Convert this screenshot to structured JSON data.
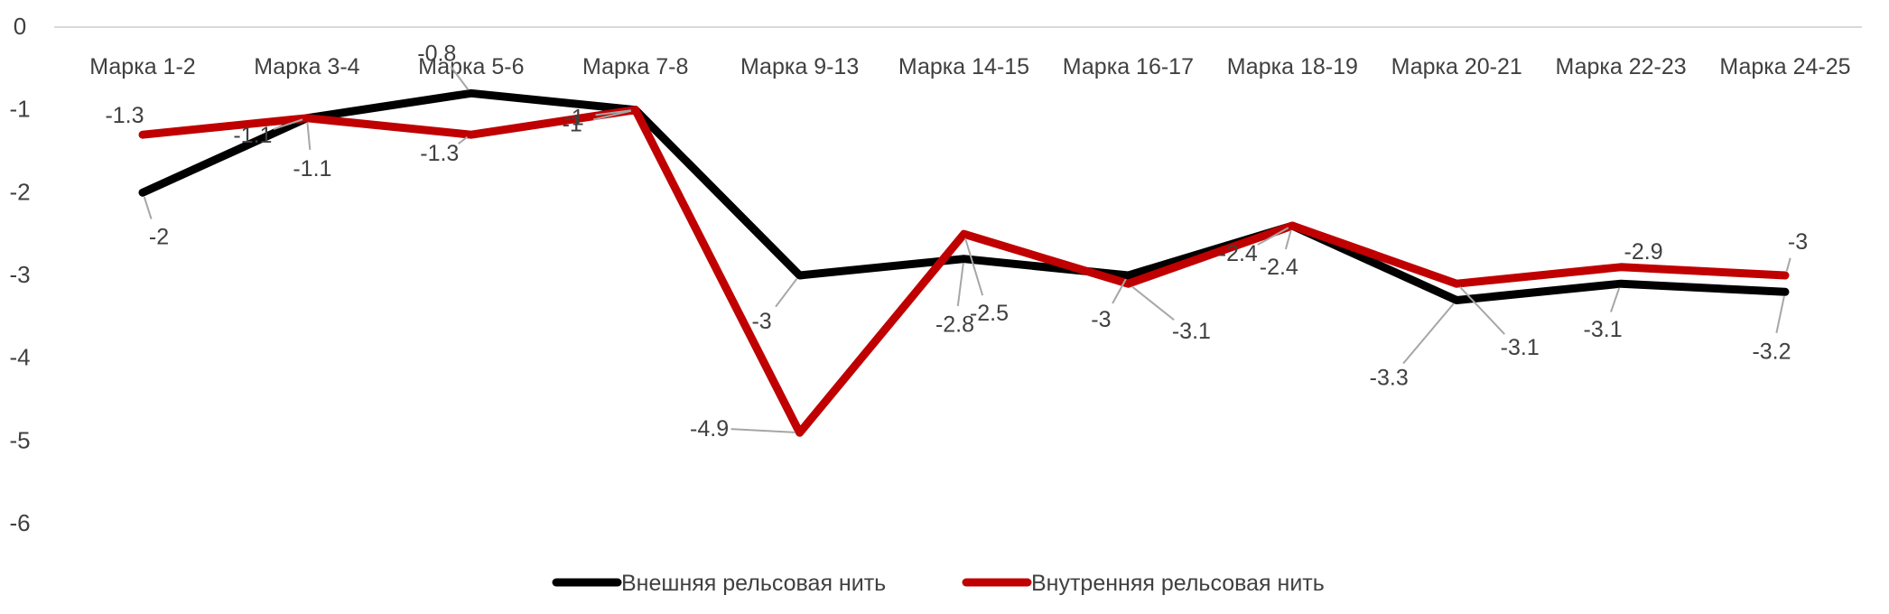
{
  "chart_data": {
    "type": "line",
    "title": "",
    "xlabel": "",
    "ylabel": "",
    "ylim": [
      -6,
      0
    ],
    "yticks": [
      0,
      -1,
      -2,
      -3,
      -4,
      -5,
      -6
    ],
    "categories": [
      "Марка 1-2",
      "Марка 3-4",
      "Марка 5-6",
      "Марка 7-8",
      "Марка 9-13",
      "Марка 14-15",
      "Марка 16-17",
      "Марка 18-19",
      "Марка 20-21",
      "Марка 22-23",
      "Марка 24-25"
    ],
    "grid": false,
    "legend_position": "bottom",
    "series": [
      {
        "name": "Внешняя рельсовая нить",
        "color": "#000000",
        "values": [
          -2,
          -1.1,
          -0.8,
          -1,
          -3,
          -2.8,
          -3,
          -2.4,
          -3.3,
          -3.1,
          -3.2
        ]
      },
      {
        "name": "Внутренняя рельсовая нить",
        "color": "#C00000",
        "values": [
          -1.3,
          -1.1,
          -1.3,
          -1,
          -4.9,
          -2.5,
          -3.1,
          -2.4,
          -3.1,
          -2.9,
          -3
        ]
      }
    ]
  }
}
